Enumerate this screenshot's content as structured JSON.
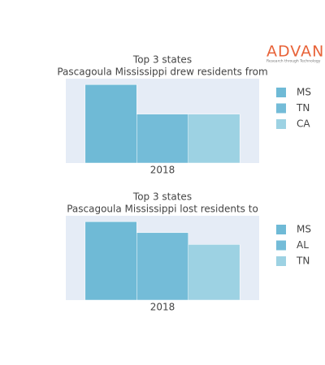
{
  "logo": {
    "name": "ADVAN",
    "tagline": "Research through Technology"
  },
  "chart_data": [
    {
      "type": "bar",
      "title": "Top 3 states",
      "subtitle": "Pascagoula Mississippi drew residents from",
      "categories": [
        "2018"
      ],
      "ylim": [
        0,
        100
      ],
      "legend": "right",
      "series": [
        {
          "name": "MS",
          "color": "#6fbad6",
          "values": [
            93
          ]
        },
        {
          "name": "TN",
          "color": "#74bcd8",
          "values": [
            58
          ]
        },
        {
          "name": "CA",
          "color": "#9dd2e3",
          "values": [
            58
          ]
        }
      ]
    },
    {
      "type": "bar",
      "title": "Top 3 states",
      "subtitle": "Pascagoula Mississippi lost residents to",
      "categories": [
        "2018"
      ],
      "ylim": [
        0,
        100
      ],
      "legend": "right",
      "series": [
        {
          "name": "MS",
          "color": "#6fbad6",
          "values": [
            93
          ]
        },
        {
          "name": "AL",
          "color": "#74bcd8",
          "values": [
            80
          ]
        },
        {
          "name": "TN",
          "color": "#9dd2e3",
          "values": [
            66
          ]
        }
      ]
    }
  ]
}
